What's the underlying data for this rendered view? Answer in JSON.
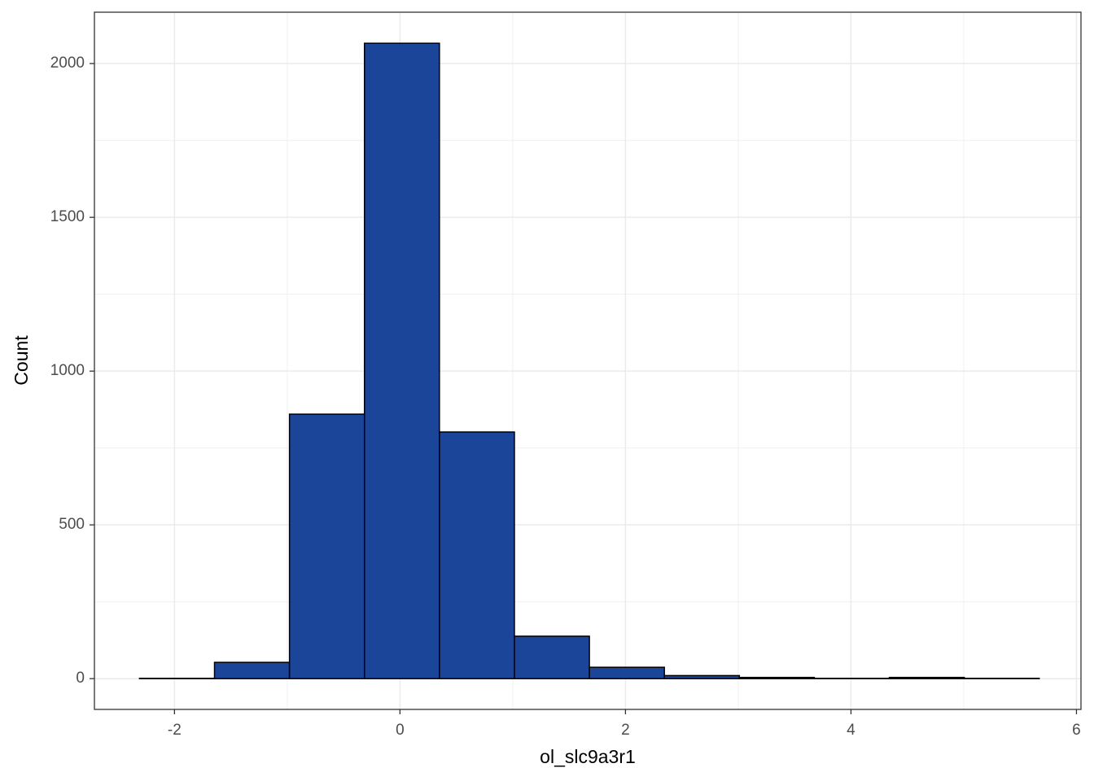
{
  "chart_data": {
    "type": "histogram",
    "x_label": "ol_slc9a3r1",
    "y_label": "Count",
    "bins": [
      -2.31,
      -1.645,
      -0.98,
      -0.315,
      0.35,
      1.015,
      1.68,
      2.345,
      3.01,
      3.675,
      4.34,
      5.005,
      5.67
    ],
    "values": [
      1,
      53,
      860,
      2066,
      802,
      138,
      37,
      10,
      4,
      1,
      4,
      1
    ],
    "color": "#1a4599",
    "xlim": [
      -2.71,
      6.04
    ],
    "ylim": [
      -100,
      2167
    ],
    "xticks": [
      -2,
      0,
      2,
      4,
      6
    ],
    "yticks": [
      0,
      500,
      1000,
      1500,
      2000
    ],
    "grid": true
  }
}
